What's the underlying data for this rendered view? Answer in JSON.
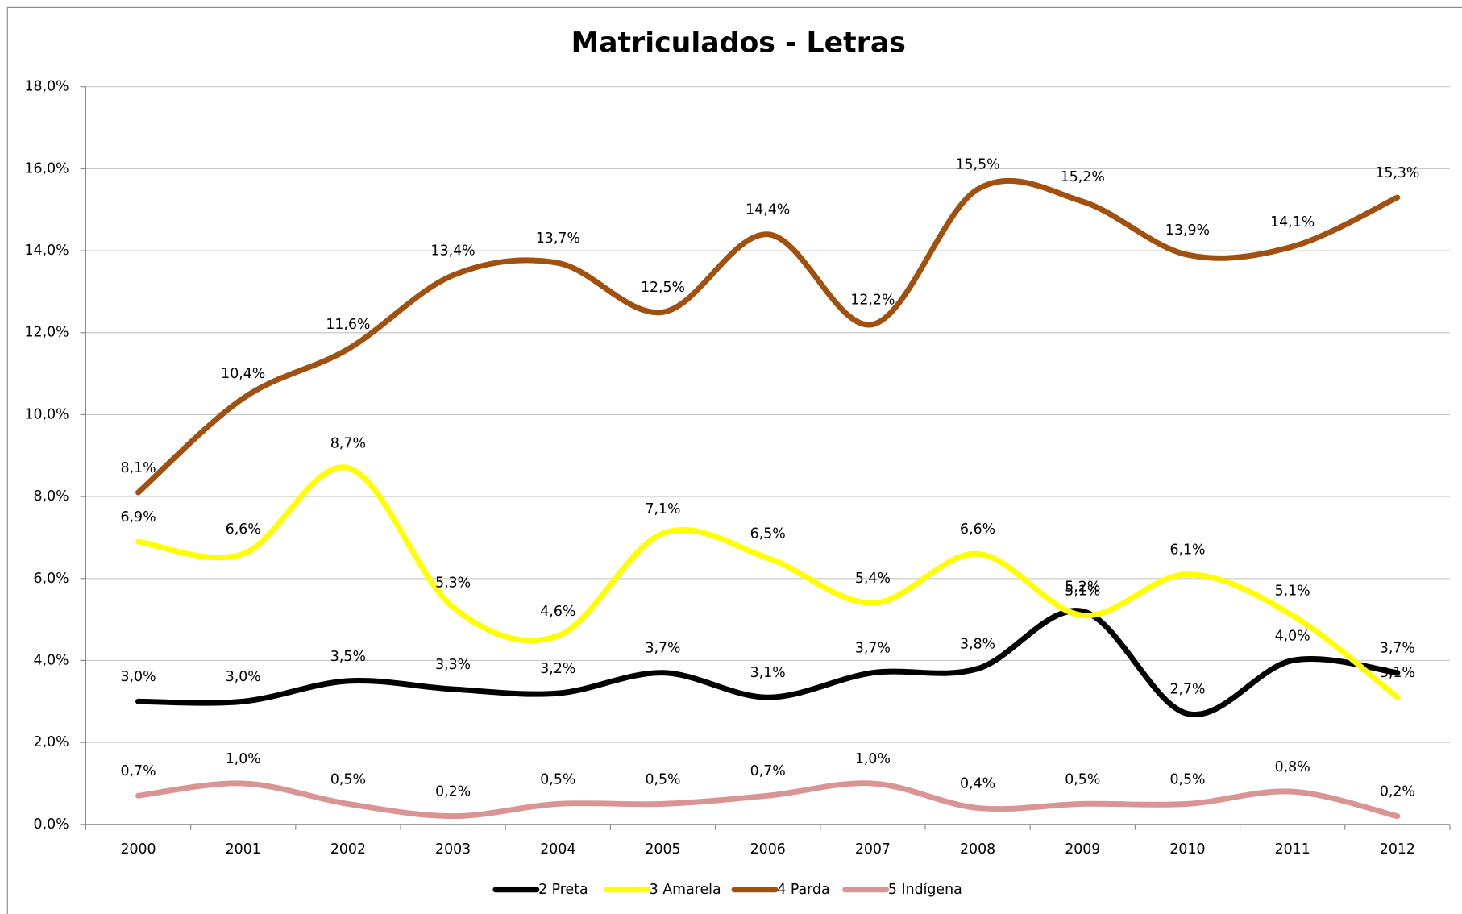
{
  "chart_data": {
    "type": "line",
    "title": "Matriculados - Letras",
    "categories": [
      "2000",
      "2001",
      "2002",
      "2003",
      "2004",
      "2005",
      "2006",
      "2007",
      "2008",
      "2009",
      "2010",
      "2011",
      "2012"
    ],
    "ylim": [
      0,
      18
    ],
    "yticks": [
      {
        "value": 0,
        "label": "0,0%"
      },
      {
        "value": 2,
        "label": "2,0%"
      },
      {
        "value": 4,
        "label": "4,0%"
      },
      {
        "value": 6,
        "label": "6,0%"
      },
      {
        "value": 8,
        "label": "8,0%"
      },
      {
        "value": 10,
        "label": "10,0%"
      },
      {
        "value": 12,
        "label": "12,0%"
      },
      {
        "value": 14,
        "label": "14,0%"
      },
      {
        "value": 16,
        "label": "16,0%"
      },
      {
        "value": 18,
        "label": "18,0%"
      }
    ],
    "grid": true,
    "legend": "bottom",
    "series": [
      {
        "name": "2 Preta",
        "color": "#000000",
        "values": [
          3.0,
          3.0,
          3.5,
          3.3,
          3.2,
          3.7,
          3.1,
          3.7,
          3.8,
          5.2,
          2.7,
          4.0,
          3.7
        ],
        "value_labels": [
          "3,0%",
          "3,0%",
          "3,5%",
          "3,3%",
          "3,2%",
          "3,7%",
          "3,1%",
          "3,7%",
          "3,8%",
          "5,2%",
          "2,7%",
          "4,0%",
          "3,7%"
        ]
      },
      {
        "name": "3 Amarela",
        "color": "#ffff00",
        "values": [
          6.9,
          6.6,
          8.7,
          5.3,
          4.6,
          7.1,
          6.5,
          5.4,
          6.6,
          5.1,
          6.1,
          5.1,
          3.1
        ],
        "value_labels": [
          "6,9%",
          "6,6%",
          "8,7%",
          "5,3%",
          "4,6%",
          "7,1%",
          "6,5%",
          "5,4%",
          "6,6%",
          "5,1%",
          "6,1%",
          "5,1%",
          "3,1%"
        ]
      },
      {
        "name": "4 Parda",
        "color": "#a0500f",
        "values": [
          8.1,
          10.4,
          11.6,
          13.4,
          13.7,
          12.5,
          14.4,
          12.2,
          15.5,
          15.2,
          13.9,
          14.1,
          15.3
        ],
        "value_labels": [
          "8,1%",
          "10,4%",
          "11,6%",
          "13,4%",
          "13,7%",
          "12,5%",
          "14,4%",
          "12,2%",
          "15,5%",
          "15,2%",
          "13,9%",
          "14,1%",
          "15,3%"
        ]
      },
      {
        "name": "5 Indígena",
        "color": "#d99594",
        "values": [
          0.7,
          1.0,
          0.5,
          0.2,
          0.5,
          0.5,
          0.7,
          1.0,
          0.4,
          0.5,
          0.5,
          0.8,
          0.2
        ],
        "value_labels": [
          "0,7%",
          "1,0%",
          "0,5%",
          "0,2%",
          "0,5%",
          "0,5%",
          "0,7%",
          "1,0%",
          "0,4%",
          "0,5%",
          "0,5%",
          "0,8%",
          "0,2%"
        ]
      }
    ]
  }
}
